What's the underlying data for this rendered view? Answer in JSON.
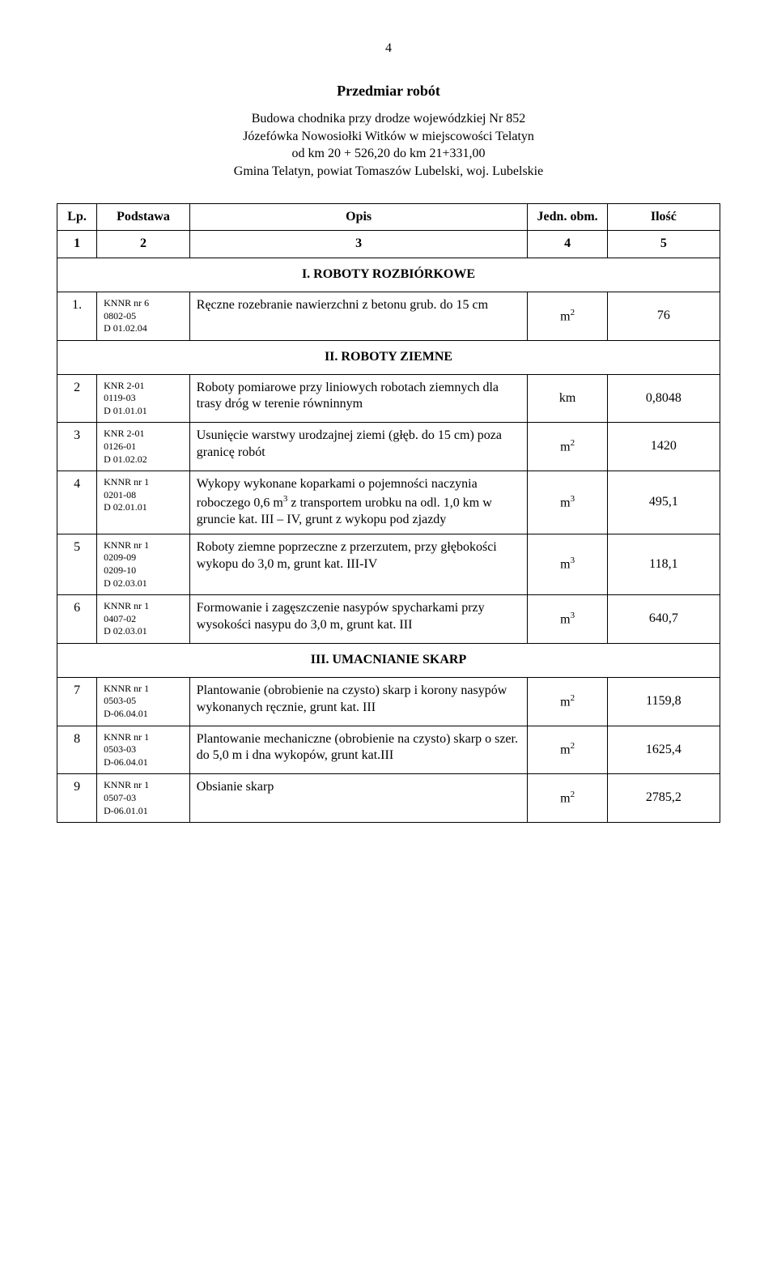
{
  "page_number": "4",
  "title": "Przedmiar robót",
  "subtitle_line1": "Budowa chodnika przy drodze wojewódzkiej Nr 852",
  "subtitle_line2": "Józefówka Nowosiołki Witków w miejscowości  Telatyn",
  "subtitle_line3": "od km 20 + 526,20 do km 21+331,00",
  "subtitle_line4": "Gmina  Telatyn, powiat Tomaszów Lubelski, woj. Lubelskie",
  "headers": {
    "lp": "Lp.",
    "podstawa": "Podstawa",
    "opis": "Opis",
    "jedn": "Jedn. obm.",
    "ilosc": "Ilość"
  },
  "header_nums": {
    "c1": "1",
    "c2": "2",
    "c3": "3",
    "c4": "4",
    "c5": "5"
  },
  "sections": {
    "s1": "I. ROBOTY ROZBIÓRKOWE",
    "s2": "II. ROBOTY ZIEMNE",
    "s3": "III. UMACNIANIE SKARP"
  },
  "rows": {
    "r1": {
      "lp": "1.",
      "pod1": "KNNR nr 6",
      "pod2": "0802-05",
      "pod3": "D 01.02.04",
      "opis": "Ręczne rozebranie nawierzchni z betonu grub. do 15 cm",
      "jedn_base": "m",
      "jedn_exp": "2",
      "ilosc": "76"
    },
    "r2": {
      "lp": "2",
      "pod1": "KNR 2-01",
      "pod2": "0119-03",
      "pod3": "D 01.01.01",
      "opis": "Roboty pomiarowe przy liniowych robotach ziemnych dla trasy dróg        w terenie równinnym",
      "jedn": "km",
      "ilosc": "0,8048"
    },
    "r3": {
      "lp": "3",
      "pod1": "KNR 2-01",
      "pod2": "0126-01",
      "pod3": "D 01.02.02",
      "opis": "Usunięcie warstwy urodzajnej ziemi (głęb. do 15 cm) poza granicę robót",
      "jedn_base": "m",
      "jedn_exp": "2",
      "ilosc": "1420"
    },
    "r4": {
      "lp": "4",
      "pod1": "KNNR nr 1",
      "pod2": "0201-08",
      "pod3": "D 02.01.01",
      "opis_a": "Wykopy wykonane koparkami            o pojemności naczynia roboczego 0,6 m",
      "opis_exp": "3",
      "opis_b": " z transportem urobku na odl. 1,0 km w gruncie kat. III – IV, grunt z wykopu pod zjazdy",
      "jedn_base": "m",
      "jedn_exp": "3",
      "ilosc": "495,1"
    },
    "r5": {
      "lp": "5",
      "pod1": "KNNR nr 1",
      "pod2": "0209-09",
      "pod3": "0209-10",
      "pod4": "D 02.03.01",
      "opis": "Roboty ziemne poprzeczne                      z przerzutem, przy głębokości wykopu do 3,0 m, grunt kat. III-IV",
      "jedn_base": "m",
      "jedn_exp": "3",
      "ilosc": "118,1"
    },
    "r6": {
      "lp": "6",
      "pod1": "KNNR nr 1",
      "pod2": "0407-02",
      "pod3": "D 02.03.01",
      "opis": "Formowanie i zagęszczenie nasypów spycharkami przy wysokości nasypu do 3,0 m, grunt kat. III",
      "jedn_base": "m",
      "jedn_exp": "3",
      "ilosc": "640,7"
    },
    "r7": {
      "lp": "7",
      "pod1": "KNNR nr 1",
      "pod2": "0503-05",
      "pod3": "D-06.04.01",
      "opis": "Plantowanie (obrobienie na czysto) skarp i korony nasypów wykonanych ręcznie, grunt kat. III",
      "jedn_base": "m",
      "jedn_exp": "2",
      "ilosc": "1159,8"
    },
    "r8": {
      "lp": "8",
      "pod1": "KNNR nr 1",
      "pod2": "0503-03",
      "pod3": "D-06.04.01",
      "opis": "Plantowanie mechaniczne (obrobienie na czysto) skarp o szer. do 5,0 m i dna wykopów, grunt kat.III",
      "jedn_base": "m",
      "jedn_exp": "2",
      "ilosc": "1625,4"
    },
    "r9": {
      "lp": "9",
      "pod1": "KNNR nr 1",
      "pod2": "0507-03",
      "pod3": "D-06.01.01",
      "opis": "Obsianie skarp",
      "jedn_base": "m",
      "jedn_exp": "2",
      "ilosc": "2785,2"
    }
  }
}
